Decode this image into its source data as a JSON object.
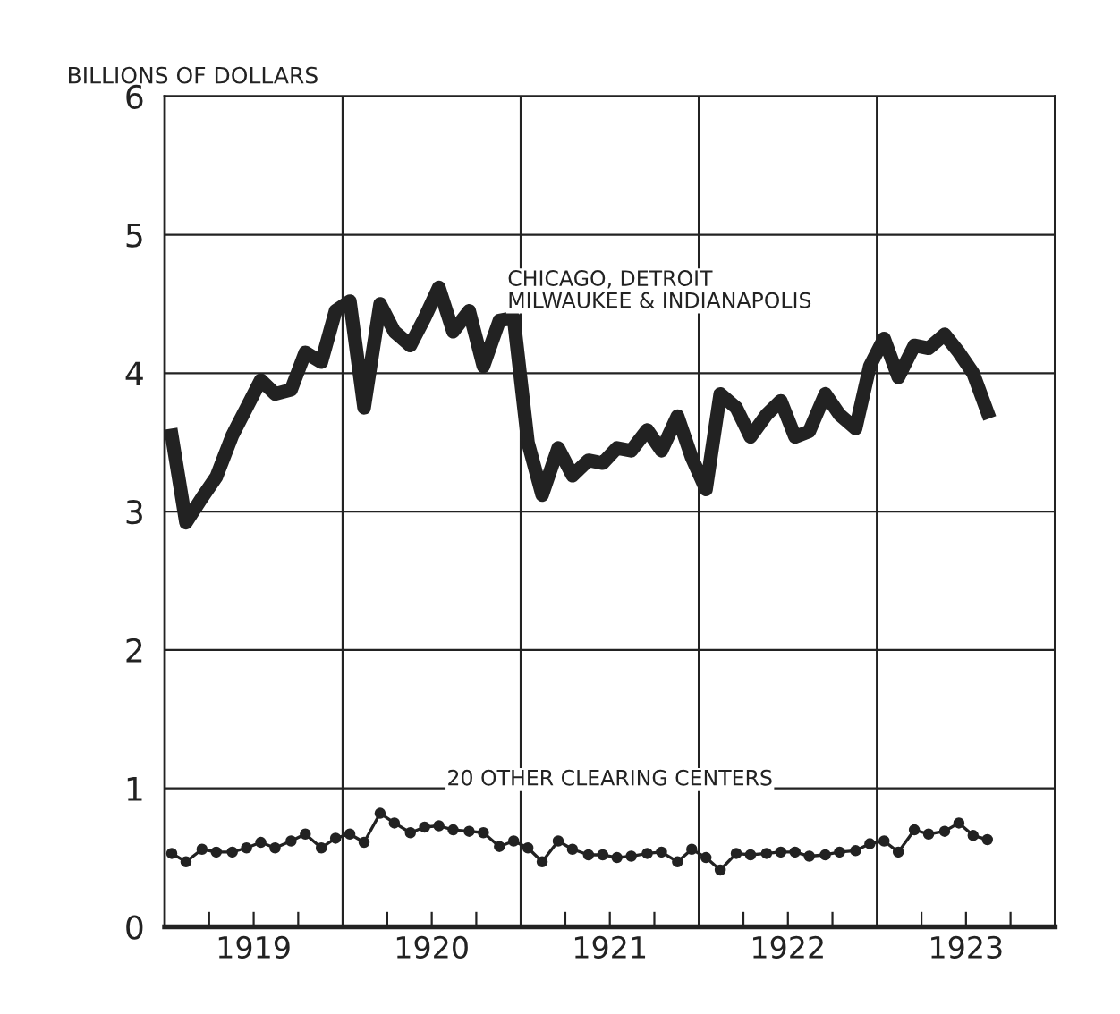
{
  "chart_data": {
    "type": "line",
    "ylabel": "BILLIONS OF DOLLARS",
    "x": [
      1919.04,
      1919.12,
      1919.21,
      1919.29,
      1919.38,
      1919.46,
      1919.54,
      1919.62,
      1919.71,
      1919.79,
      1919.88,
      1919.96,
      1920.04,
      1920.12,
      1920.21,
      1920.29,
      1920.38,
      1920.46,
      1920.54,
      1920.62,
      1920.71,
      1920.79,
      1920.88,
      1920.96,
      1921.04,
      1921.12,
      1921.21,
      1921.29,
      1921.38,
      1921.46,
      1921.54,
      1921.62,
      1921.71,
      1921.79,
      1921.88,
      1921.96,
      1922.04,
      1922.12,
      1922.21,
      1922.29,
      1922.38,
      1922.46,
      1922.54,
      1922.62,
      1922.71,
      1922.79,
      1922.88,
      1922.96,
      1923.04,
      1923.12,
      1923.21,
      1923.29,
      1923.38,
      1923.46,
      1923.54,
      1923.62
    ],
    "series": [
      {
        "name": "CHICAGO, DETROIT\nMILWAUKEE & INDIANAPOLIS",
        "color": "#222222",
        "marker": "none",
        "values": [
          3.55,
          2.92,
          3.1,
          3.25,
          3.55,
          3.75,
          3.95,
          3.85,
          3.88,
          4.15,
          4.08,
          4.45,
          4.52,
          3.75,
          4.5,
          4.3,
          4.2,
          4.4,
          4.62,
          4.3,
          4.45,
          4.05,
          4.38,
          4.4,
          3.5,
          3.12,
          3.46,
          3.26,
          3.37,
          3.35,
          3.46,
          3.44,
          3.59,
          3.44,
          3.69,
          3.39,
          3.16,
          3.85,
          3.75,
          3.54,
          3.7,
          3.8,
          3.54,
          3.58,
          3.85,
          3.7,
          3.6,
          4.05,
          4.25,
          3.97,
          4.2,
          4.18,
          4.28,
          4.15,
          4.0,
          3.72
        ]
      },
      {
        "name": "20 OTHER CLEARING CENTERS",
        "color": "#222222",
        "marker": "circle",
        "values": [
          0.53,
          0.47,
          0.56,
          0.54,
          0.54,
          0.57,
          0.61,
          0.57,
          0.62,
          0.67,
          0.57,
          0.64,
          0.67,
          0.61,
          0.82,
          0.75,
          0.68,
          0.72,
          0.73,
          0.7,
          0.69,
          0.68,
          0.58,
          0.62,
          0.57,
          0.47,
          0.62,
          0.56,
          0.52,
          0.52,
          0.5,
          0.51,
          0.53,
          0.54,
          0.47,
          0.56,
          0.5,
          0.41,
          0.53,
          0.52,
          0.53,
          0.54,
          0.54,
          0.51,
          0.52,
          0.54,
          0.55,
          0.6,
          0.62,
          0.54,
          0.7,
          0.67,
          0.69,
          0.75,
          0.66,
          0.63
        ]
      }
    ],
    "xlim": [
      1919,
      1924
    ],
    "xticks": [
      {
        "value": 1919.25,
        "label": null
      },
      {
        "value": 1919.5,
        "label": "1919"
      },
      {
        "value": 1919.75,
        "label": null
      },
      {
        "value": 1920.25,
        "label": null
      },
      {
        "value": 1920.5,
        "label": "1920"
      },
      {
        "value": 1920.75,
        "label": null
      },
      {
        "value": 1921.25,
        "label": null
      },
      {
        "value": 1921.5,
        "label": "1921"
      },
      {
        "value": 1921.75,
        "label": null
      },
      {
        "value": 1922.25,
        "label": null
      },
      {
        "value": 1922.5,
        "label": "1922"
      },
      {
        "value": 1922.75,
        "label": null
      },
      {
        "value": 1923.25,
        "label": null
      },
      {
        "value": 1923.5,
        "label": "1923"
      },
      {
        "value": 1923.75,
        "label": null
      }
    ],
    "ylim": [
      0,
      6
    ],
    "yticks": [
      0,
      1,
      2,
      3,
      4,
      5,
      6
    ],
    "grid": "y",
    "ref_lines": [
      {
        "axis": "x",
        "value": 1920
      },
      {
        "axis": "x",
        "value": 1921
      },
      {
        "axis": "x",
        "value": 1922
      },
      {
        "axis": "x",
        "value": 1923
      }
    ],
    "line_style": "solid"
  }
}
